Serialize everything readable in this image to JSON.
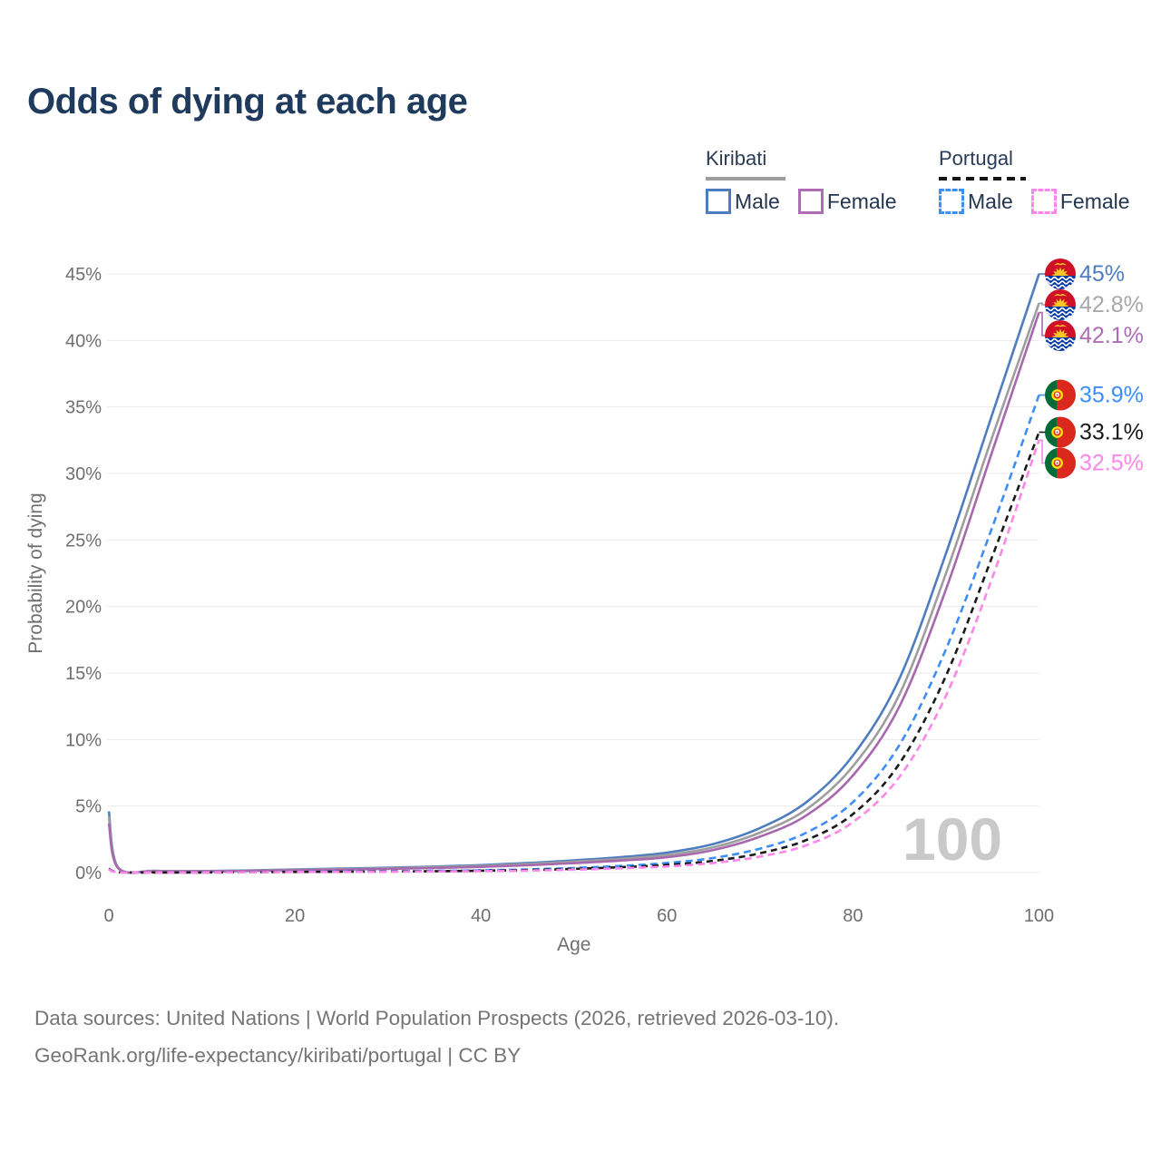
{
  "title": "Odds of dying at each age",
  "legend": {
    "groups": [
      {
        "country": "Kiribati",
        "line_style": "solid",
        "underline_color": "#9e9e9e",
        "items": [
          {
            "label": "Male",
            "color": "#4e7dbf"
          },
          {
            "label": "Female",
            "color": "#ad6cb3"
          }
        ]
      },
      {
        "country": "Portugal",
        "line_style": "dashed",
        "underline_color": "#151515",
        "items": [
          {
            "label": "Male",
            "color": "#3e8ef7"
          },
          {
            "label": "Female",
            "color": "#fb87e8"
          }
        ]
      }
    ]
  },
  "chart_data": {
    "type": "line",
    "xlabel": "Age",
    "ylabel": "Probability of dying",
    "xlim": [
      0,
      100
    ],
    "ylim": [
      0,
      45
    ],
    "x_ticks": [
      0,
      20,
      40,
      60,
      80,
      100
    ],
    "y_ticks": [
      0,
      5,
      10,
      15,
      20,
      25,
      30,
      35,
      40,
      45
    ],
    "y_tick_suffix": "%",
    "grid": true,
    "legend_position": "top-right",
    "hover_age_watermark": "100",
    "watermark_color": "#c9c9c9",
    "axis_text_color": "#6f6f6f",
    "grid_color": "#eaeaea",
    "series": [
      {
        "id": "kiribati-male",
        "country": "Kiribati",
        "group": "Male",
        "color": "#4e7dbf",
        "label_color": "#4e7dbf",
        "dash": "solid",
        "flag": "kiribati",
        "end_label": "45%",
        "end_value": 45.0,
        "points": [
          [
            0,
            4.6
          ],
          [
            1,
            0.38
          ],
          [
            5,
            0.13
          ],
          [
            10,
            0.11
          ],
          [
            15,
            0.16
          ],
          [
            20,
            0.24
          ],
          [
            25,
            0.3
          ],
          [
            30,
            0.36
          ],
          [
            35,
            0.45
          ],
          [
            40,
            0.56
          ],
          [
            45,
            0.72
          ],
          [
            50,
            0.92
          ],
          [
            55,
            1.16
          ],
          [
            60,
            1.5
          ],
          [
            65,
            2.15
          ],
          [
            70,
            3.35
          ],
          [
            75,
            5.3
          ],
          [
            80,
            8.8
          ],
          [
            85,
            14.6
          ],
          [
            90,
            24.0
          ],
          [
            95,
            34.5
          ],
          [
            100,
            45.0
          ]
        ]
      },
      {
        "id": "kiribati-all",
        "country": "Kiribati",
        "group": "All",
        "color": "#9e9e9e",
        "label_color": "#a8a8a8",
        "dash": "solid",
        "flag": "kiribati",
        "end_label": "42.8%",
        "end_value": 42.8,
        "points": [
          [
            0,
            4.2
          ],
          [
            1,
            0.35
          ],
          [
            5,
            0.12
          ],
          [
            10,
            0.1
          ],
          [
            15,
            0.14
          ],
          [
            20,
            0.21
          ],
          [
            25,
            0.26
          ],
          [
            30,
            0.32
          ],
          [
            35,
            0.4
          ],
          [
            40,
            0.5
          ],
          [
            45,
            0.64
          ],
          [
            50,
            0.82
          ],
          [
            55,
            1.03
          ],
          [
            60,
            1.32
          ],
          [
            65,
            1.9
          ],
          [
            70,
            3.0
          ],
          [
            75,
            4.75
          ],
          [
            80,
            8.0
          ],
          [
            85,
            13.4
          ],
          [
            90,
            22.5
          ],
          [
            95,
            32.8
          ],
          [
            100,
            42.8
          ]
        ]
      },
      {
        "id": "kiribati-female",
        "country": "Kiribati",
        "group": "Female",
        "color": "#a768ae",
        "label_color": "#ad6cb3",
        "dash": "solid",
        "flag": "kiribati",
        "end_label": "42.1%",
        "end_value": 42.1,
        "points": [
          [
            0,
            3.7
          ],
          [
            1,
            0.32
          ],
          [
            5,
            0.11
          ],
          [
            10,
            0.09
          ],
          [
            15,
            0.12
          ],
          [
            20,
            0.17
          ],
          [
            25,
            0.22
          ],
          [
            30,
            0.27
          ],
          [
            35,
            0.34
          ],
          [
            40,
            0.43
          ],
          [
            45,
            0.55
          ],
          [
            50,
            0.71
          ],
          [
            55,
            0.9
          ],
          [
            60,
            1.15
          ],
          [
            65,
            1.7
          ],
          [
            70,
            2.7
          ],
          [
            75,
            4.3
          ],
          [
            80,
            7.3
          ],
          [
            85,
            12.5
          ],
          [
            90,
            21.3
          ],
          [
            95,
            31.7
          ],
          [
            100,
            42.1
          ]
        ]
      },
      {
        "id": "portugal-male",
        "country": "Portugal",
        "group": "Male",
        "color": "#3e8ef7",
        "label_color": "#3e8ef7",
        "dash": "8 5",
        "flag": "portugal",
        "end_label": "35.9%",
        "end_value": 35.9,
        "points": [
          [
            0,
            0.3
          ],
          [
            1,
            0.03
          ],
          [
            5,
            0.01
          ],
          [
            10,
            0.01
          ],
          [
            15,
            0.03
          ],
          [
            20,
            0.06
          ],
          [
            25,
            0.08
          ],
          [
            30,
            0.1
          ],
          [
            35,
            0.13
          ],
          [
            40,
            0.17
          ],
          [
            45,
            0.24
          ],
          [
            50,
            0.35
          ],
          [
            55,
            0.5
          ],
          [
            60,
            0.72
          ],
          [
            65,
            1.1
          ],
          [
            70,
            1.8
          ],
          [
            75,
            3.0
          ],
          [
            80,
            5.3
          ],
          [
            85,
            9.6
          ],
          [
            90,
            16.8
          ],
          [
            95,
            26.0
          ],
          [
            100,
            35.9
          ]
        ]
      },
      {
        "id": "portugal-all",
        "country": "Portugal",
        "group": "All",
        "color": "#1a1a1a",
        "label_color": "#1a1a1a",
        "dash": "7 5",
        "flag": "portugal",
        "end_label": "33.1%",
        "end_value": 33.1,
        "points": [
          [
            0,
            0.27
          ],
          [
            1,
            0.025
          ],
          [
            5,
            0.01
          ],
          [
            10,
            0.01
          ],
          [
            15,
            0.025
          ],
          [
            20,
            0.05
          ],
          [
            25,
            0.065
          ],
          [
            30,
            0.08
          ],
          [
            35,
            0.1
          ],
          [
            40,
            0.14
          ],
          [
            45,
            0.19
          ],
          [
            50,
            0.28
          ],
          [
            55,
            0.4
          ],
          [
            60,
            0.57
          ],
          [
            65,
            0.88
          ],
          [
            70,
            1.45
          ],
          [
            75,
            2.45
          ],
          [
            80,
            4.4
          ],
          [
            85,
            8.2
          ],
          [
            90,
            14.8
          ],
          [
            95,
            23.8
          ],
          [
            100,
            33.1
          ]
        ]
      },
      {
        "id": "portugal-female",
        "country": "Portugal",
        "group": "Female",
        "color": "#fb87e8",
        "label_color": "#fb87e8",
        "dash": "8 5",
        "flag": "portugal",
        "end_label": "32.5%",
        "end_value": 32.5,
        "points": [
          [
            0,
            0.24
          ],
          [
            1,
            0.02
          ],
          [
            5,
            0.01
          ],
          [
            10,
            0.01
          ],
          [
            15,
            0.02
          ],
          [
            20,
            0.04
          ],
          [
            25,
            0.05
          ],
          [
            30,
            0.06
          ],
          [
            35,
            0.08
          ],
          [
            40,
            0.11
          ],
          [
            45,
            0.15
          ],
          [
            50,
            0.22
          ],
          [
            55,
            0.32
          ],
          [
            60,
            0.46
          ],
          [
            65,
            0.72
          ],
          [
            70,
            1.2
          ],
          [
            75,
            2.05
          ],
          [
            80,
            3.8
          ],
          [
            85,
            7.2
          ],
          [
            90,
            13.3
          ],
          [
            95,
            22.2
          ],
          [
            100,
            32.5
          ]
        ]
      }
    ]
  },
  "footer": {
    "line1": "Data sources: United Nations | World Population Prospects (2026, retrieved 2026-03-10).",
    "line2": "GeoRank.org/life-expectancy/kiribati/portugal | CC BY"
  }
}
